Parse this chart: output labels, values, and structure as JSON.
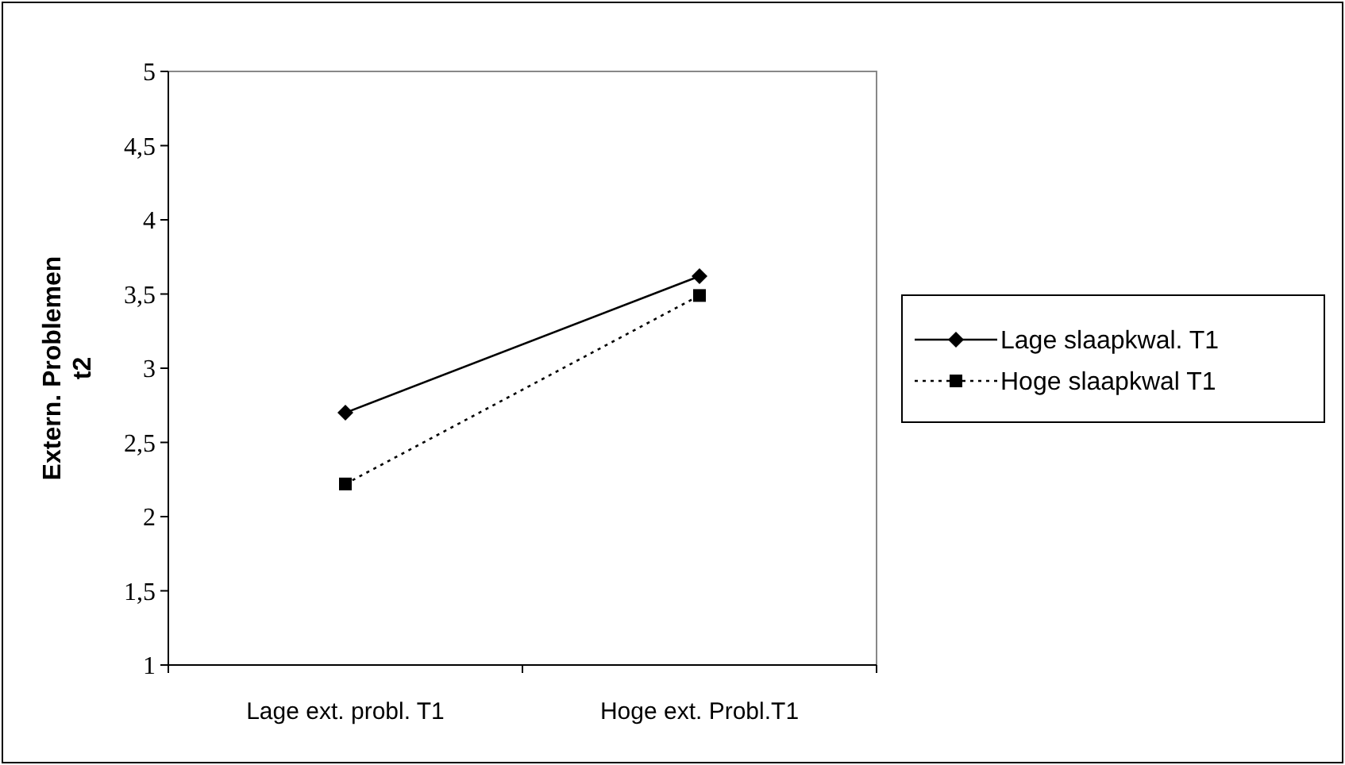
{
  "chart_data": {
    "type": "line",
    "ylabel": "Extern. Problemen t2",
    "categories": [
      "Lage ext. probl. T1",
      "Hoge ext. Probl.T1"
    ],
    "ylim": [
      1,
      5
    ],
    "yticks": [
      1,
      {
        "value": 1.5,
        "label": "1,5"
      },
      2,
      {
        "value": 2.5,
        "label": "2,5"
      },
      3,
      {
        "value": 3.5,
        "label": "3,5"
      },
      4,
      {
        "value": 4.5,
        "label": "4,5"
      },
      5
    ],
    "legend": "right",
    "grid": false,
    "series": [
      {
        "name": "Lage slaapkwal. T1",
        "color": "#000000",
        "values": [
          2.7,
          3.62
        ],
        "marker": "diamond",
        "line_style": "solid"
      },
      {
        "name": "Hoge slaapkwal T1",
        "color": "#000000",
        "values": [
          2.22,
          3.49
        ],
        "marker": "square",
        "line_style": "dotted"
      }
    ]
  }
}
